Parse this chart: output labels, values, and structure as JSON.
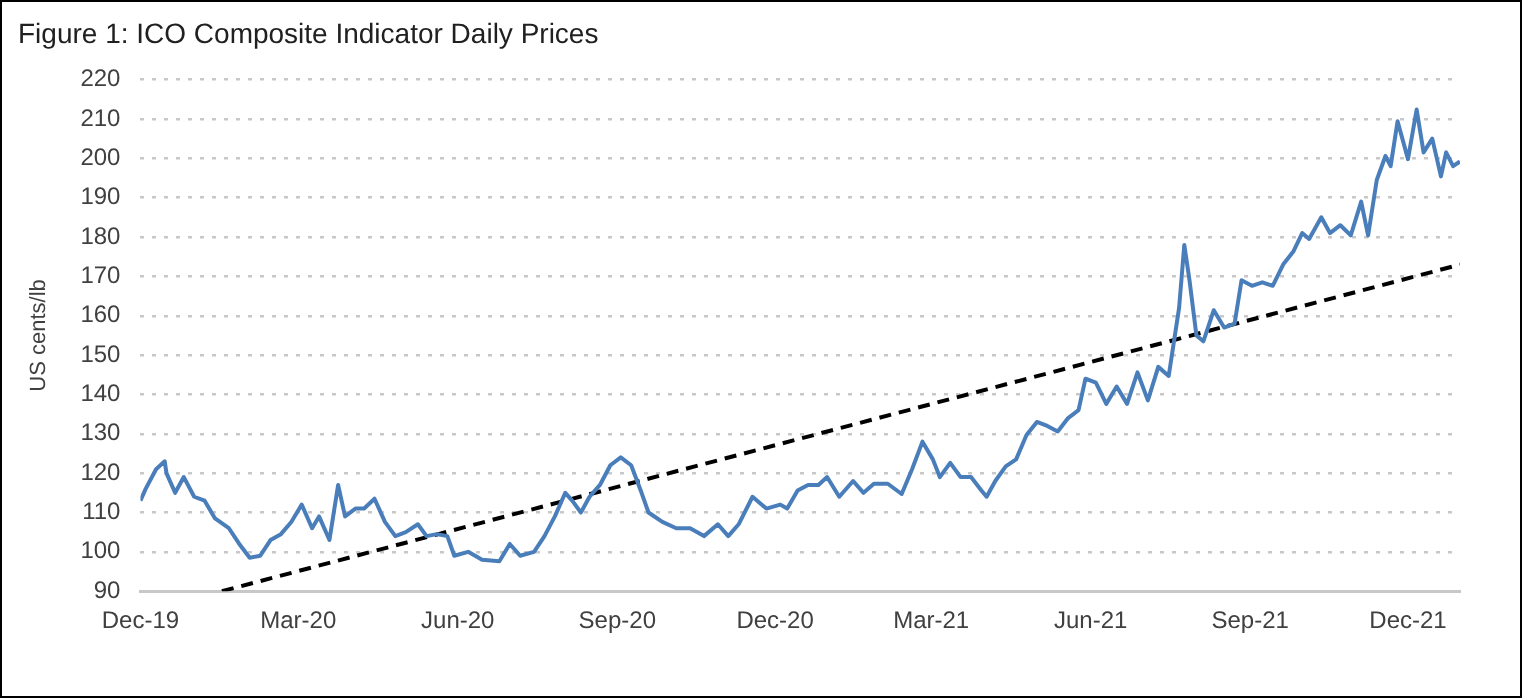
{
  "chart_data": {
    "type": "line",
    "title": "Figure 1: ICO Composite Indicator Daily Prices",
    "ylabel": "US cents/lb",
    "xlim": [
      "2019-12-01",
      "2021-12-31"
    ],
    "ylim": [
      90,
      220
    ],
    "xticks": [
      {
        "value": "2019-12-01",
        "label": "Dec-19"
      },
      {
        "value": "2020-03-01",
        "label": "Mar-20"
      },
      {
        "value": "2020-06-01",
        "label": "Jun-20"
      },
      {
        "value": "2020-09-01",
        "label": "Sep-20"
      },
      {
        "value": "2020-12-01",
        "label": "Dec-20"
      },
      {
        "value": "2021-03-01",
        "label": "Mar-21"
      },
      {
        "value": "2021-06-01",
        "label": "Jun-21"
      },
      {
        "value": "2021-09-01",
        "label": "Sep-21"
      },
      {
        "value": "2021-12-01",
        "label": "Dec-21"
      }
    ],
    "yticks": [
      90,
      100,
      110,
      120,
      130,
      140,
      150,
      160,
      170,
      180,
      190,
      200,
      210,
      220
    ],
    "grid": "y",
    "legend": false,
    "marker": "none",
    "series": [
      {
        "color": "#4a7ebb",
        "line_style": "solid",
        "x": [
          "2019-12-01",
          "2019-12-04",
          "2019-12-10",
          "2019-12-15",
          "2019-12-16",
          "2019-12-21",
          "2019-12-26",
          "2020-01-01",
          "2020-01-07",
          "2020-01-13",
          "2020-01-21",
          "2020-01-27",
          "2020-02-02",
          "2020-02-08",
          "2020-02-14",
          "2020-02-20",
          "2020-02-26",
          "2020-03-03",
          "2020-03-09",
          "2020-03-13",
          "2020-03-19",
          "2020-03-24",
          "2020-03-28",
          "2020-04-03",
          "2020-04-08",
          "2020-04-14",
          "2020-04-20",
          "2020-04-26",
          "2020-05-02",
          "2020-05-09",
          "2020-05-14",
          "2020-05-20",
          "2020-05-26",
          "2020-05-30",
          "2020-06-07",
          "2020-06-15",
          "2020-06-25",
          "2020-07-01",
          "2020-07-07",
          "2020-07-15",
          "2020-07-21",
          "2020-07-27",
          "2020-08-02",
          "2020-08-06",
          "2020-08-11",
          "2020-08-16",
          "2020-08-22",
          "2020-08-28",
          "2020-09-03",
          "2020-09-09",
          "2020-09-15",
          "2020-09-19",
          "2020-09-27",
          "2020-10-05",
          "2020-10-13",
          "2020-10-21",
          "2020-10-29",
          "2020-11-04",
          "2020-11-10",
          "2020-11-18",
          "2020-11-26",
          "2020-12-04",
          "2020-12-08",
          "2020-12-14",
          "2020-12-20",
          "2020-12-26",
          "2020-12-31",
          "2021-01-07",
          "2021-01-15",
          "2021-01-21",
          "2021-01-27",
          "2021-02-04",
          "2021-02-12",
          "2021-02-18",
          "2021-02-24",
          "2021-03-02",
          "2021-03-06",
          "2021-03-12",
          "2021-03-18",
          "2021-03-24",
          "2021-03-30",
          "2021-04-02",
          "2021-04-07",
          "2021-04-13",
          "2021-04-19",
          "2021-04-25",
          "2021-05-01",
          "2021-05-07",
          "2021-05-13",
          "2021-05-19",
          "2021-05-25",
          "2021-05-29",
          "2021-06-04",
          "2021-06-10",
          "2021-06-16",
          "2021-06-22",
          "2021-06-28",
          "2021-07-04",
          "2021-07-10",
          "2021-07-16",
          "2021-07-22",
          "2021-07-25",
          "2021-07-28",
          "2021-08-01",
          "2021-08-05",
          "2021-08-11",
          "2021-08-17",
          "2021-08-23",
          "2021-08-27",
          "2021-09-02",
          "2021-09-08",
          "2021-09-14",
          "2021-09-20",
          "2021-09-26",
          "2021-10-01",
          "2021-10-05",
          "2021-10-12",
          "2021-10-17",
          "2021-10-23",
          "2021-10-29",
          "2021-11-04",
          "2021-11-08",
          "2021-11-13",
          "2021-11-18",
          "2021-11-21",
          "2021-11-25",
          "2021-12-01",
          "2021-12-06",
          "2021-12-10",
          "2021-12-15",
          "2021-12-20",
          "2021-12-23",
          "2021-12-27",
          "2021-12-31"
        ],
        "values": [
          113,
          116,
          121,
          123,
          120,
          115,
          119,
          114,
          113,
          108.5,
          106,
          102,
          98.5,
          99,
          103,
          104.5,
          107.6,
          112,
          106,
          109,
          103,
          117,
          109,
          111,
          111,
          113.5,
          107.6,
          104,
          105,
          107,
          104,
          104.5,
          104,
          99,
          100,
          98,
          97.6,
          102,
          99,
          100,
          104,
          109,
          115,
          113,
          110,
          114,
          117,
          122,
          124,
          122,
          115,
          110,
          107.6,
          106,
          106,
          104,
          107,
          104,
          107,
          114,
          111,
          112,
          111,
          115.6,
          117,
          117,
          119,
          114,
          118,
          115,
          117.3,
          117.3,
          114.7,
          121,
          128,
          123.5,
          119,
          122.6,
          119,
          119,
          115.6,
          114,
          118,
          121.7,
          123.5,
          129.7,
          133,
          132,
          130.6,
          134,
          136,
          144,
          143,
          137.6,
          142,
          137.6,
          145.6,
          138.5,
          147,
          144.7,
          162,
          178,
          169,
          155,
          153.5,
          161.4,
          157,
          158,
          169,
          167.6,
          168.5,
          167.6,
          173,
          176.4,
          181,
          179.5,
          185,
          181,
          183,
          180.4,
          189,
          180.4,
          194.5,
          200.6,
          198,
          209.4,
          199.8,
          212.4,
          201.5,
          205,
          195.4,
          201.5,
          198,
          199.2
        ]
      },
      {
        "type": "line",
        "color": "#000000",
        "line_style": "dashed",
        "x": [
          "2020-01-17",
          "2021-12-31"
        ],
        "values": [
          90,
          173
        ]
      }
    ]
  }
}
